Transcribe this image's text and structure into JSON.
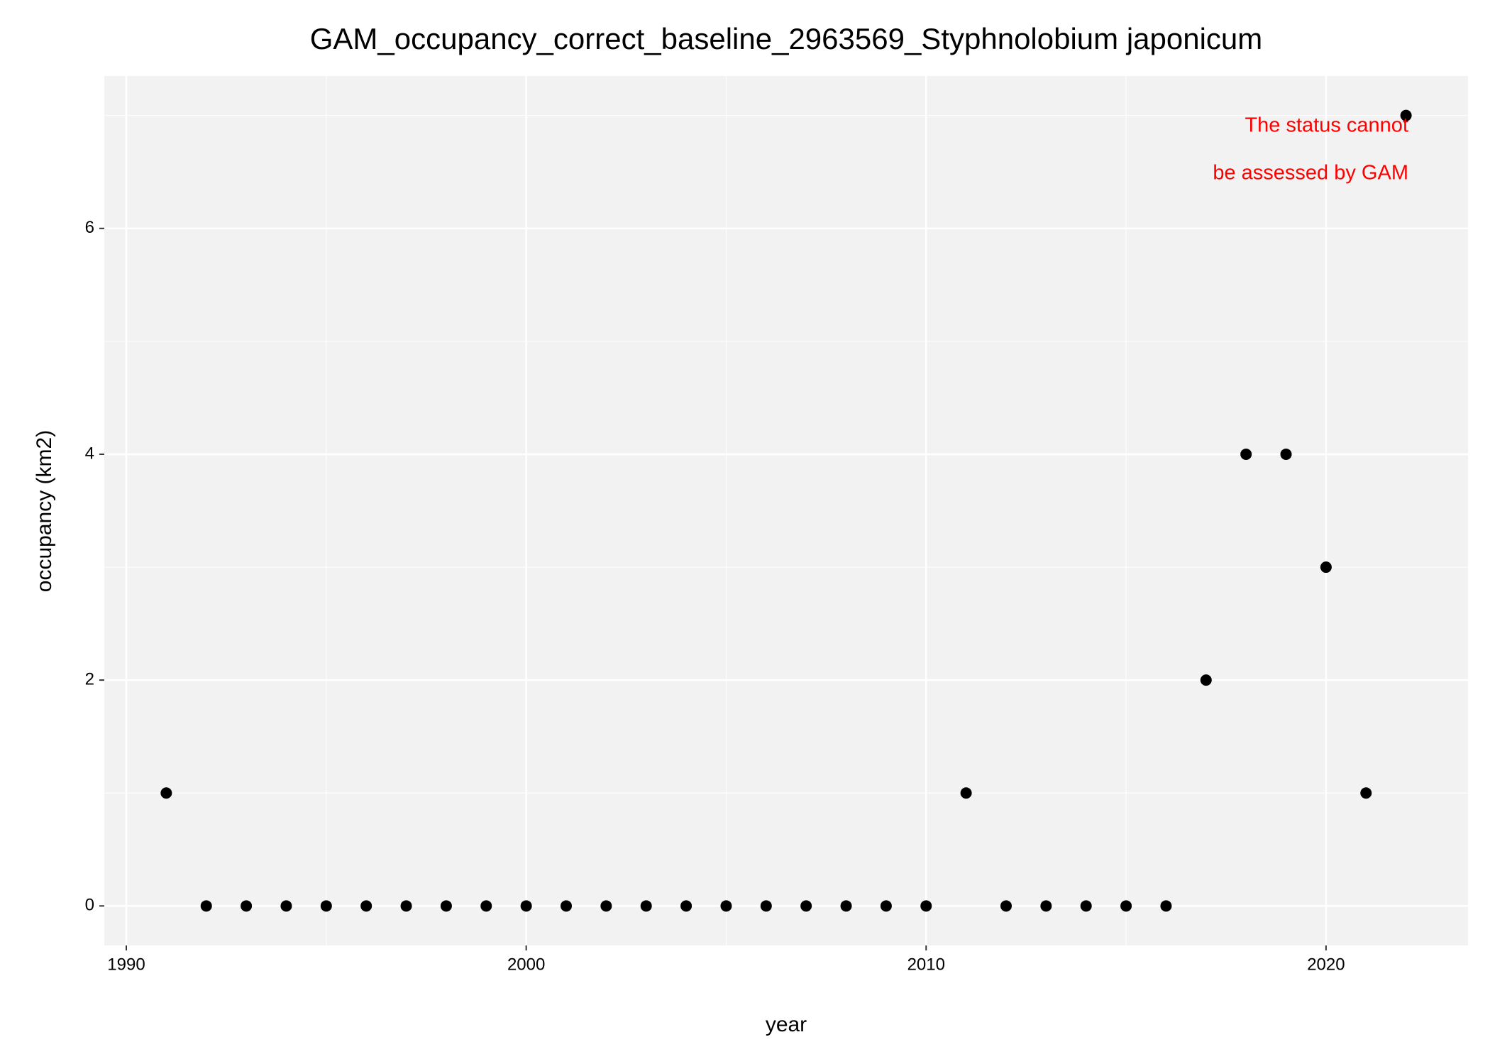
{
  "chart_data": {
    "type": "scatter",
    "title": "GAM_occupancy_correct_baseline_2963569_Styphnolobium japonicum",
    "x_label": "year",
    "y_label": "occupancy (km2)",
    "annotation": [
      "The status cannot",
      "be assessed by GAM"
    ],
    "annotation_color": "#ff0000",
    "x": [
      1991,
      1992,
      1993,
      1994,
      1995,
      1996,
      1997,
      1998,
      1999,
      2000,
      2001,
      2002,
      2003,
      2004,
      2005,
      2006,
      2007,
      2008,
      2009,
      2010,
      2011,
      2012,
      2013,
      2014,
      2015,
      2016,
      2017,
      2018,
      2019,
      2020,
      2021,
      2022
    ],
    "values": [
      1,
      0,
      0,
      0,
      0,
      0,
      0,
      0,
      0,
      0,
      0,
      0,
      0,
      0,
      0,
      0,
      0,
      0,
      0,
      0,
      1,
      0,
      0,
      0,
      0,
      0,
      2,
      4,
      4,
      3,
      1,
      7
    ],
    "color": "#000000",
    "xlim": [
      1989.45,
      2023.55
    ],
    "ylim": [
      -0.35,
      7.35
    ],
    "xticks": [
      1990,
      2000,
      2010,
      2020
    ],
    "yticks": [
      0,
      2,
      4,
      6
    ],
    "x_minor_grid": [
      1995,
      2005,
      2015
    ],
    "y_minor_grid": [
      1,
      3,
      5,
      7
    ],
    "grid": true
  }
}
